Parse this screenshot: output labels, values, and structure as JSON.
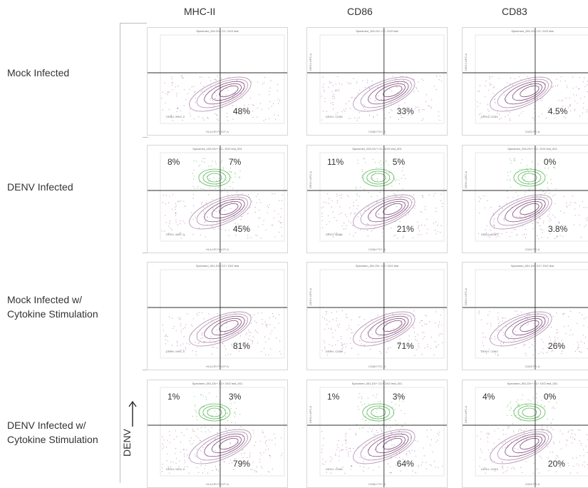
{
  "columns": [
    "MHC-II",
    "CD86",
    "CD83"
  ],
  "rows": [
    {
      "label_lines": [
        "Mock Infected"
      ]
    },
    {
      "label_lines": [
        "DENV Infected"
      ]
    },
    {
      "label_lines": [
        "Mock Infected w/",
        "Cytokine Stimulation"
      ]
    },
    {
      "label_lines": [
        "DENV Infected w/",
        "Cytokine Stimulation"
      ]
    }
  ],
  "axis_label": "DENV",
  "plot_titles": [
    [
      "Specimen_001-DV- CC- DV2 test",
      "Specimen_001-DV- CC- DV2 test",
      "Specimen_001-DV- CC- DV2 test"
    ],
    [
      "Specimen_001-DV+ CC- DV2 test_001",
      "Specimen_001-DV+ CC- DV2 test_001",
      "Specimen_001-DV+ CC- DV2 test_001"
    ],
    [
      "Specimen_001-DV- CC+ DV2 test",
      "Specimen_001-DV- CC+ DV2 test",
      "Specimen_001-DV- CC+ DV2 test"
    ],
    [
      "Specimen_001-DV+ CC+ DV2 test_001",
      "Specimen_001-DV+ CC+ DV2 test_001",
      "Specimen_001-DV+ CC+ DV2 test_001"
    ]
  ],
  "x_axis_labels": [
    "HLA-DR PerCP-A",
    "CD86 FITC-A",
    "CD83 PE-A"
  ],
  "y_axis_label": "DENV APC-A",
  "neg_quadrant_labels": [
    "DENV- MHC-II",
    "DENV- CD86",
    "DENV- CD83"
  ],
  "percentages": [
    [
      {
        "lr": "48%"
      },
      {
        "lr": "33%"
      },
      {
        "lr": "4.5%"
      }
    ],
    [
      {
        "ul": "8%",
        "ur": "7%",
        "lr": "45%"
      },
      {
        "ul": "11%",
        "ur": "5%",
        "lr": "21%"
      },
      {
        "ul": "",
        "ur": "0%",
        "lr": "3.8%"
      }
    ],
    [
      {
        "lr": "81%"
      },
      {
        "lr": "71%"
      },
      {
        "lr": "26%"
      }
    ],
    [
      {
        "ul": "1%",
        "ur": "3%",
        "lr": "79%"
      },
      {
        "ul": "1%",
        "ur": "3%",
        "lr": "64%"
      },
      {
        "ul": "4%",
        "ur": "0%",
        "lr": "20%"
      }
    ]
  ],
  "colors": {
    "contour": "#8a5a86",
    "contour_light": "#b79ab5",
    "green": "#5cb85c",
    "dots": "#9b4d8f",
    "line": "#2c2c2c"
  }
}
